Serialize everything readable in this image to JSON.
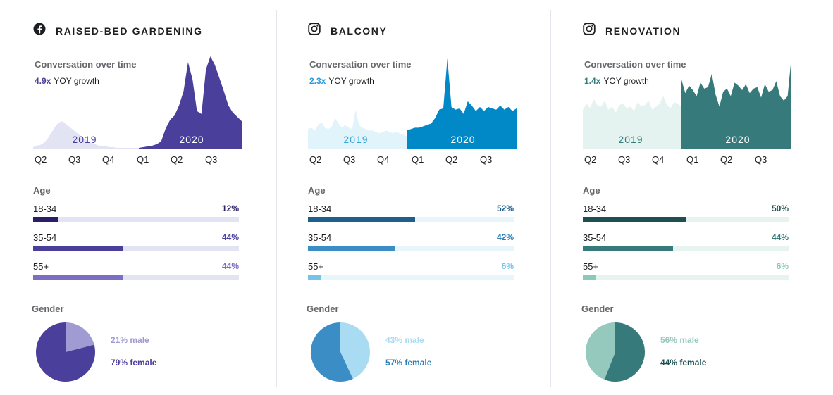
{
  "panels": [
    {
      "title": "RAISED-BED GARDENING",
      "platform_icon": "facebook-icon",
      "conversation_label": "Conversation over time",
      "growth_value": "4.9x",
      "growth_label": "YOY growth",
      "year_labels": [
        "2019",
        "2020"
      ],
      "age_label": "Age",
      "age": [
        {
          "label": "18-34",
          "pct_text": "12%",
          "value": 12
        },
        {
          "label": "35-54",
          "pct_text": "44%",
          "value": 44
        },
        {
          "label": "55+",
          "pct_text": "44%",
          "value": 44
        }
      ],
      "gender_label": "Gender",
      "gender": {
        "male_pct": 21,
        "female_pct": 79,
        "male_text": "21% male",
        "female_text": "79% female"
      },
      "colors": {
        "area_2019": "#e3e4f3",
        "area_2020": "#4b3f9c",
        "year_2019": "#4b3f9c",
        "year_2020": "#ffffff",
        "bar_track": "#e3e4f3",
        "bars": [
          "#2a1f66",
          "#4b3f9c",
          "#7a6fc4"
        ],
        "pcts": [
          "#2a1f66",
          "#4b3f9c",
          "#7a6fc4"
        ],
        "pie_male": "#a09bd3",
        "pie_female": "#4b3f9c",
        "male_text": "#a09bd3",
        "female_text": "#4b3f9c",
        "growth": "#4b3f9c"
      }
    },
    {
      "title": "BALCONY",
      "platform_icon": "instagram-icon",
      "conversation_label": "Conversation over time",
      "growth_value": "2.3x",
      "growth_label": "YOY growth",
      "year_labels": [
        "2019",
        "2020"
      ],
      "age_label": "Age",
      "age": [
        {
          "label": "18-34",
          "pct_text": "52%",
          "value": 52
        },
        {
          "label": "35-54",
          "pct_text": "42%",
          "value": 42
        },
        {
          "label": "55+",
          "pct_text": "6%",
          "value": 6
        }
      ],
      "gender_label": "Gender",
      "gender": {
        "male_pct": 43,
        "female_pct": 57,
        "male_text": "43% male",
        "female_text": "57% female"
      },
      "colors": {
        "area_2019": "#e1f4fb",
        "area_2020": "#0088c7",
        "year_2019": "#3aa3d6",
        "year_2020": "#ffffff",
        "bar_track": "#e8f5fa",
        "bars": [
          "#1f5f8b",
          "#3a8ec5",
          "#76c3ea"
        ],
        "pcts": [
          "#1f5f8b",
          "#2d7fb5",
          "#76c3ea"
        ],
        "pie_male": "#a9dbf3",
        "pie_female": "#3a8ec5",
        "male_text": "#a9dbf3",
        "female_text": "#2d7fb5",
        "growth": "#2d9ad4"
      }
    },
    {
      "title": "RENOVATION",
      "platform_icon": "instagram-icon",
      "conversation_label": "Conversation over time",
      "growth_value": "1.4x",
      "growth_label": "YOY growth",
      "year_labels": [
        "2019",
        "2020"
      ],
      "age_label": "Age",
      "age": [
        {
          "label": "18-34",
          "pct_text": "50%",
          "value": 50
        },
        {
          "label": "35-54",
          "pct_text": "44%",
          "value": 44
        },
        {
          "label": "55+",
          "pct_text": "6%",
          "value": 6
        }
      ],
      "gender_label": "Gender",
      "gender": {
        "male_pct": 56,
        "female_pct": 44,
        "male_text": "56% male",
        "female_text": "44% female"
      },
      "colors": {
        "area_2019": "#e4f3ef",
        "area_2020": "#367a7b",
        "year_2019": "#367a7b",
        "year_2020": "#ffffff",
        "bar_track": "#e6f3ef",
        "bars": [
          "#1f4f51",
          "#367a7b",
          "#8cc9bd"
        ],
        "pcts": [
          "#1f4f51",
          "#367a7b",
          "#8cc9bd"
        ],
        "pie_male": "#367a7b",
        "pie_female": "#95c9be",
        "male_text": "#95c9be",
        "female_text": "#1f4f51",
        "growth": "#367a7b"
      }
    }
  ],
  "chart_data": [
    {
      "type": "area",
      "title": "Conversation over time",
      "x_tick_labels": [
        "Q2",
        "Q3",
        "Q4",
        "Q1",
        "Q2",
        "Q3"
      ],
      "series": [
        {
          "name": "2019",
          "values": [
            2,
            4,
            5,
            8,
            14,
            22,
            30,
            36,
            38,
            34,
            30,
            26,
            22,
            18,
            14,
            10,
            8,
            6,
            4,
            3,
            3,
            2,
            2,
            1,
            1,
            1,
            1,
            1,
            1,
            1
          ]
        },
        {
          "name": "2020",
          "values": [
            1,
            2,
            3,
            4,
            6,
            10,
            28,
            40,
            46,
            60,
            80,
            120,
            96,
            52,
            48,
            110,
            128,
            116,
            98,
            80,
            60,
            50,
            44,
            38
          ]
        }
      ],
      "ylim": [
        0,
        130
      ]
    },
    {
      "type": "area",
      "title": "Conversation over time",
      "x_tick_labels": [
        "Q2",
        "Q3",
        "Q4",
        "Q1",
        "Q2",
        "Q3"
      ],
      "series": [
        {
          "name": "2019",
          "values": [
            28,
            30,
            26,
            34,
            38,
            30,
            28,
            32,
            44,
            36,
            30,
            34,
            30,
            28,
            56,
            34,
            30,
            28,
            26,
            26,
            24,
            22,
            24,
            26,
            24,
            22,
            24,
            22,
            20,
            18
          ]
        },
        {
          "name": "2020",
          "values": [
            26,
            28,
            30,
            30,
            32,
            34,
            36,
            44,
            56,
            58,
            130,
            60,
            56,
            58,
            50,
            68,
            62,
            54,
            60,
            54,
            60,
            58,
            56,
            62,
            56,
            60,
            54,
            58
          ]
        }
      ],
      "ylim": [
        0,
        135
      ]
    },
    {
      "type": "area",
      "title": "Conversation over time",
      "x_tick_labels": [
        "Q2",
        "Q3",
        "Q4",
        "Q1",
        "Q2",
        "Q3"
      ],
      "series": [
        {
          "name": "2019",
          "values": [
            52,
            60,
            54,
            66,
            58,
            56,
            64,
            52,
            56,
            48,
            58,
            60,
            54,
            56,
            50,
            62,
            56,
            58,
            64,
            52,
            56,
            60,
            70,
            58,
            54,
            62,
            60,
            56
          ]
        },
        {
          "name": "2020",
          "values": [
            92,
            74,
            84,
            78,
            70,
            88,
            80,
            82,
            100,
            72,
            56,
            76,
            80,
            70,
            88,
            84,
            78,
            86,
            74,
            80,
            82,
            68,
            86,
            76,
            78,
            90,
            70,
            64,
            70,
            122
          ]
        }
      ],
      "ylim": [
        0,
        125
      ]
    }
  ]
}
